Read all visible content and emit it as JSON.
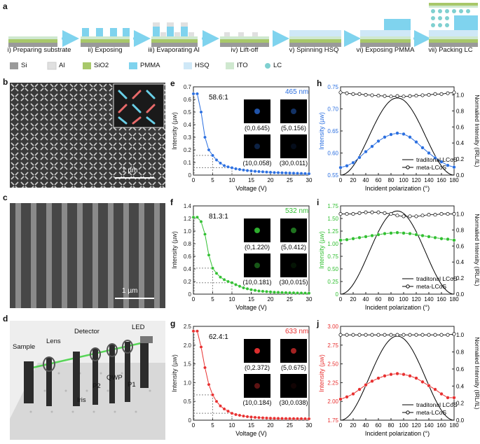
{
  "panel_labels": {
    "a": "a",
    "b": "b",
    "c": "c",
    "d": "d",
    "e": "e",
    "f": "f",
    "g": "g",
    "h": "h",
    "i": "i",
    "j": "j"
  },
  "process_steps": [
    "i) Preparing substrate",
    "ii) Exposing",
    "iii) Evaporating Al",
    "iv) Lift-off",
    "v) Spinning HSQ",
    "vi) Exposing PMMA",
    "vii) Packing LC"
  ],
  "materials_legend": [
    {
      "label": "Si",
      "color": "#9a9a9a"
    },
    {
      "label": "Al",
      "color": "#e0e0e0"
    },
    {
      "label": "SiO2",
      "color": "#a8c86a"
    },
    {
      "label": "PMMA",
      "color": "#7fd3ee"
    },
    {
      "label": "HSQ",
      "color": "#cfe8f7"
    },
    {
      "label": "ITO",
      "color": "#cfe8cf"
    },
    {
      "label": "LC",
      "color": "#7fd0d0"
    }
  ],
  "sem_b": {
    "scale": "1 µm"
  },
  "sem_c": {
    "scale": "1 µm"
  },
  "setup_labels": [
    "Sample",
    "Lens",
    "Detector",
    "LED",
    "QWP",
    "P1",
    "P2",
    "Iris"
  ],
  "colors": {
    "blue": "#2b6fe0",
    "green": "#33c033",
    "red": "#e83030",
    "axis": "#222222",
    "guide": "#888888"
  },
  "chart_data": [
    {
      "id": "e",
      "type": "line",
      "xlabel": "Voltage (V)",
      "ylabel": "Intensity (µw)",
      "xlim": [
        0,
        30
      ],
      "ylim": [
        0,
        0.7
      ],
      "xticks": [
        0,
        5,
        10,
        15,
        20,
        25,
        30
      ],
      "xtick_labels": [
        "0",
        "5",
        "10",
        "15",
        "20",
        "25",
        "30"
      ],
      "yticks": [
        0,
        0.1,
        0.2,
        0.3,
        0.4,
        0.5,
        0.6,
        0.7
      ],
      "ytick_labels": [
        "0",
        "0.1",
        "0.2",
        "0.3",
        "0.4",
        "0.5",
        "0.6",
        "0.7"
      ],
      "wavelength": "465 nm",
      "ratio": "58.6:1",
      "color_key": "blue",
      "x": [
        0,
        1,
        2,
        3,
        4,
        5,
        6,
        7,
        8,
        9,
        10,
        11,
        12,
        13,
        14,
        15,
        16,
        17,
        18,
        19,
        20,
        21,
        22,
        23,
        24,
        25,
        26,
        27,
        28,
        29,
        30
      ],
      "y": [
        0.645,
        0.645,
        0.5,
        0.3,
        0.2,
        0.156,
        0.12,
        0.095,
        0.075,
        0.065,
        0.058,
        0.05,
        0.045,
        0.04,
        0.036,
        0.033,
        0.03,
        0.028,
        0.026,
        0.024,
        0.022,
        0.02,
        0.019,
        0.018,
        0.017,
        0.016,
        0.015,
        0.014,
        0.013,
        0.012,
        0.011
      ],
      "spots": [
        {
          "label": "(0,0.645)",
          "b": 0.75
        },
        {
          "label": "(5,0.156)",
          "b": 0.45
        },
        {
          "label": "(10,0.058)",
          "b": 0.3
        },
        {
          "label": "(30,0.011)",
          "b": 0.12
        }
      ],
      "guides": [
        {
          "x": 5,
          "y": 0.156
        },
        {
          "x": 10,
          "y": 0.058
        }
      ]
    },
    {
      "id": "f",
      "type": "line",
      "xlabel": "Voltage (V)",
      "ylabel": "Intensity (µw)",
      "xlim": [
        0,
        30
      ],
      "ylim": [
        0,
        1.4
      ],
      "xticks": [
        0,
        5,
        10,
        15,
        20,
        25,
        30
      ],
      "xtick_labels": [
        "0",
        "5",
        "10",
        "15",
        "20",
        "25",
        "30"
      ],
      "yticks": [
        0,
        0.2,
        0.4,
        0.6,
        0.8,
        1.0,
        1.2,
        1.4
      ],
      "ytick_labels": [
        "0",
        "0.2",
        "0.4",
        "0.6",
        "0.8",
        "1.0",
        "1.2",
        "1.4"
      ],
      "wavelength": "532 nm",
      "ratio": "81.3:1",
      "color_key": "green",
      "x": [
        0,
        1,
        2,
        3,
        4,
        5,
        6,
        7,
        8,
        9,
        10,
        11,
        12,
        13,
        14,
        15,
        16,
        17,
        18,
        19,
        20,
        21,
        22,
        23,
        24,
        25,
        26,
        27,
        28,
        29,
        30
      ],
      "y": [
        1.22,
        1.22,
        1.15,
        0.95,
        0.62,
        0.412,
        0.33,
        0.27,
        0.23,
        0.2,
        0.181,
        0.15,
        0.125,
        0.1,
        0.085,
        0.07,
        0.06,
        0.05,
        0.045,
        0.04,
        0.035,
        0.03,
        0.028,
        0.025,
        0.023,
        0.021,
        0.02,
        0.018,
        0.017,
        0.016,
        0.015
      ],
      "spots": [
        {
          "label": "(0,1.220)",
          "b": 0.9
        },
        {
          "label": "(5,0.412)",
          "b": 0.6
        },
        {
          "label": "(10,0.181)",
          "b": 0.45
        },
        {
          "label": "(30,0.015)",
          "b": 0.1
        }
      ],
      "guides": [
        {
          "x": 5,
          "y": 0.412
        },
        {
          "x": 10,
          "y": 0.181
        }
      ]
    },
    {
      "id": "g",
      "type": "line",
      "xlabel": "Voltage (V)",
      "ylabel": "Intensity (µw)",
      "xlim": [
        0,
        30
      ],
      "ylim": [
        0,
        2.5
      ],
      "xticks": [
        0,
        5,
        10,
        15,
        20,
        25,
        30
      ],
      "xtick_labels": [
        "0",
        "5",
        "10",
        "15",
        "20",
        "25",
        "30"
      ],
      "yticks": [
        0,
        0.5,
        1.0,
        1.5,
        2.0,
        2.5
      ],
      "ytick_labels": [
        "0",
        "0.5",
        "1.0",
        "1.5",
        "2.0",
        "2.5"
      ],
      "wavelength": "633 nm",
      "ratio": "62.4:1",
      "color_key": "red",
      "x": [
        0,
        1,
        2,
        3,
        4,
        5,
        6,
        7,
        8,
        9,
        10,
        11,
        12,
        13,
        14,
        15,
        16,
        17,
        18,
        19,
        20,
        21,
        22,
        23,
        24,
        25,
        26,
        27,
        28,
        29,
        30
      ],
      "y": [
        2.372,
        2.372,
        1.95,
        1.4,
        0.95,
        0.675,
        0.5,
        0.38,
        0.3,
        0.24,
        0.184,
        0.15,
        0.13,
        0.11,
        0.095,
        0.085,
        0.075,
        0.068,
        0.062,
        0.057,
        0.053,
        0.05,
        0.048,
        0.046,
        0.044,
        0.043,
        0.042,
        0.041,
        0.04,
        0.039,
        0.038
      ],
      "spots": [
        {
          "label": "(0,2.372)",
          "b": 0.95
        },
        {
          "label": "(5,0.675)",
          "b": 0.7
        },
        {
          "label": "(10,0.184)",
          "b": 0.4
        },
        {
          "label": "(30,0.038)",
          "b": 0.08
        }
      ],
      "guides": [
        {
          "x": 5,
          "y": 0.675
        },
        {
          "x": 10,
          "y": 0.184
        }
      ]
    },
    {
      "id": "h",
      "type": "line",
      "xlabel": "Incident polarization (°)",
      "ylabel": "Intensity (µw)",
      "ylabel2": "Normalied Intensity (IRL/IL)",
      "xlim": [
        0,
        180
      ],
      "ylim": [
        0.55,
        0.75
      ],
      "ylim2": [
        0,
        1.1
      ],
      "xticks": [
        0,
        20,
        40,
        60,
        80,
        100,
        120,
        140,
        160,
        180
      ],
      "xtick_labels": [
        "0",
        "20",
        "40",
        "60",
        "80",
        "100",
        "120",
        "140",
        "160",
        "180"
      ],
      "yticks": [
        0.55,
        0.6,
        0.65,
        0.7,
        0.75
      ],
      "ytick_labels": [
        "0.55",
        "0.60",
        "0.65",
        "0.70",
        "0.75"
      ],
      "yticks2": [
        0,
        0.2,
        0.4,
        0.6,
        0.8,
        1.0
      ],
      "ytick2_labels": [
        "0.0",
        "0.2",
        "0.4",
        "0.6",
        "0.8",
        "1.0"
      ],
      "color_key": "blue",
      "legend": [
        "traditonal LCoS",
        "meta-LCoS"
      ],
      "x": [
        0,
        10,
        20,
        30,
        40,
        50,
        60,
        70,
        80,
        90,
        100,
        110,
        120,
        130,
        140,
        150,
        160,
        170,
        180
      ],
      "y": [
        0.567,
        0.571,
        0.578,
        0.59,
        0.603,
        0.615,
        0.627,
        0.636,
        0.642,
        0.645,
        0.643,
        0.636,
        0.625,
        0.612,
        0.6,
        0.589,
        0.58,
        0.572,
        0.568
      ],
      "meta_y": [
        1.03,
        1.02,
        1.01,
        1.01,
        1.0,
        0.995,
        0.99,
        0.985,
        0.98,
        0.985,
        0.98,
        0.985,
        0.99,
        0.995,
        1.0,
        1.01,
        1.01,
        1.02,
        1.03
      ],
      "cos_peak": 0.725
    },
    {
      "id": "i",
      "type": "line",
      "xlabel": "Incident polarization (°)",
      "ylabel": "Intensity (µw)",
      "ylabel2": "Normalied Intensity (IRL/IL)",
      "xlim": [
        0,
        180
      ],
      "ylim": [
        0,
        1.75
      ],
      "ylim2": [
        0,
        1.1
      ],
      "xticks": [
        0,
        20,
        40,
        60,
        80,
        100,
        120,
        140,
        160,
        180
      ],
      "xtick_labels": [
        "0",
        "20",
        "40",
        "60",
        "80",
        "100",
        "120",
        "140",
        "160",
        "180"
      ],
      "yticks": [
        0,
        0.25,
        0.5,
        0.75,
        1.0,
        1.25,
        1.5,
        1.75
      ],
      "ytick_labels": [
        "0",
        "0.25",
        "0.50",
        "0.75",
        "1.00",
        "1.25",
        "1.50",
        "1.75"
      ],
      "yticks2": [
        0,
        0.2,
        0.4,
        0.6,
        0.8,
        1.0
      ],
      "ytick2_labels": [
        "0.0",
        "0.2",
        "0.4",
        "0.6",
        "0.8",
        "1.0"
      ],
      "color_key": "green",
      "legend": [
        "traditonal LCoS",
        "meta-LCoS"
      ],
      "x": [
        0,
        10,
        20,
        30,
        40,
        50,
        60,
        70,
        80,
        90,
        100,
        110,
        120,
        130,
        140,
        150,
        160,
        170,
        180
      ],
      "y": [
        1.07,
        1.08,
        1.1,
        1.12,
        1.14,
        1.16,
        1.18,
        1.2,
        1.21,
        1.22,
        1.21,
        1.2,
        1.18,
        1.16,
        1.14,
        1.12,
        1.1,
        1.09,
        1.07
      ],
      "meta_y": [
        1.0,
        1.0,
        1.0,
        1.01,
        1.02,
        1.02,
        1.02,
        1.01,
        1.0,
        0.98,
        0.97,
        0.97,
        0.97,
        0.98,
        0.99,
        0.99,
        1.0,
        1.0,
        1.0
      ],
      "cos_peak": 1.65
    },
    {
      "id": "j",
      "type": "line",
      "xlabel": "Incident polarization (°)",
      "ylabel": "Intensity (µw)",
      "ylabel2": "Normalied Intensity (IRL/IL)",
      "xlim": [
        0,
        180
      ],
      "ylim": [
        1.75,
        3.0
      ],
      "ylim2": [
        0,
        1.1
      ],
      "xticks": [
        0,
        20,
        40,
        60,
        80,
        100,
        120,
        140,
        160,
        180
      ],
      "xtick_labels": [
        "0",
        "20",
        "40",
        "60",
        "80",
        "100",
        "120",
        "140",
        "160",
        "180"
      ],
      "yticks": [
        1.75,
        2.0,
        2.25,
        2.5,
        2.75,
        3.0
      ],
      "ytick_labels": [
        "1.75",
        "2.00",
        "2.25",
        "2.50",
        "2.75",
        "3.00"
      ],
      "yticks2": [
        0,
        0.2,
        0.4,
        0.6,
        0.8,
        1.0
      ],
      "ytick2_labels": [
        "0.0",
        "0.2",
        "0.4",
        "0.6",
        "0.8",
        "1.0"
      ],
      "color_key": "red",
      "legend": [
        "traditonal LCoS",
        "meta-LCoS"
      ],
      "x": [
        0,
        10,
        20,
        30,
        40,
        50,
        60,
        70,
        80,
        90,
        100,
        110,
        120,
        130,
        140,
        150,
        160,
        170,
        180
      ],
      "y": [
        2.03,
        2.06,
        2.1,
        2.16,
        2.22,
        2.27,
        2.31,
        2.34,
        2.36,
        2.37,
        2.36,
        2.34,
        2.31,
        2.26,
        2.21,
        2.16,
        2.1,
        2.05,
        2.05
      ],
      "meta_y": [
        1.0,
        1.0,
        1.0,
        1.0,
        1.0,
        1.0,
        1.0,
        1.0,
        1.0,
        1.0,
        1.0,
        1.0,
        1.0,
        1.0,
        1.0,
        1.0,
        1.0,
        1.0,
        1.01
      ],
      "cos_peak": 2.87
    }
  ]
}
